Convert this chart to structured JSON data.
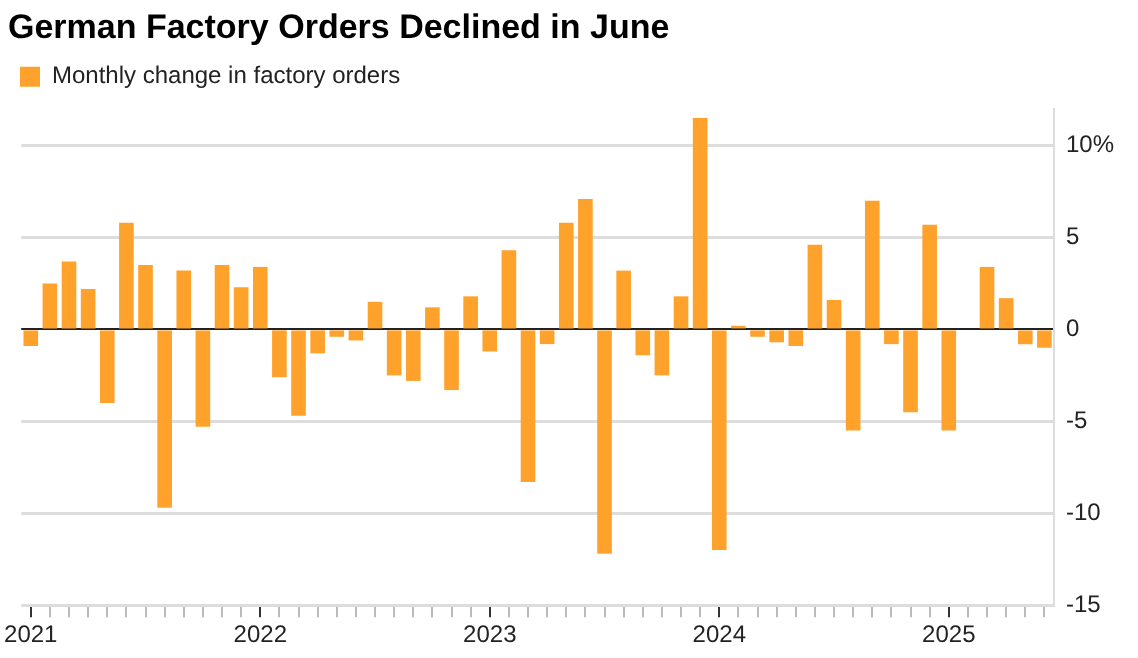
{
  "chart_data": {
    "type": "bar",
    "title": "German Factory Orders Declined in June",
    "categories": [
      "2021",
      null,
      null,
      null,
      null,
      null,
      null,
      null,
      null,
      null,
      null,
      null,
      "2022",
      null,
      null,
      null,
      null,
      null,
      null,
      null,
      null,
      null,
      null,
      null,
      "2023",
      null,
      null,
      null,
      null,
      null,
      null,
      null,
      null,
      null,
      null,
      null,
      "2024",
      null,
      null,
      null,
      null,
      null,
      null,
      null,
      null,
      null,
      null,
      null,
      "2025",
      null,
      null,
      null,
      null,
      null
    ],
    "series": [
      {
        "name": "Monthly change in factory orders",
        "color": "#ffa22b",
        "values": [
          -0.9,
          2.5,
          3.7,
          2.2,
          -4.0,
          5.8,
          3.5,
          -9.7,
          3.2,
          -5.3,
          3.5,
          2.3,
          3.4,
          -2.6,
          -4.7,
          -1.3,
          -0.4,
          -0.6,
          1.5,
          -2.5,
          -2.8,
          1.2,
          -3.3,
          1.8,
          -1.2,
          4.3,
          -8.3,
          -0.8,
          5.8,
          7.1,
          -12.2,
          3.2,
          -1.4,
          -2.5,
          1.8,
          11.5,
          -12.0,
          0.2,
          -0.4,
          -0.7,
          -0.9,
          4.6,
          1.6,
          -5.5,
          7.0,
          -0.8,
          -4.5,
          5.7,
          -5.5,
          0,
          3.4,
          1.7,
          -0.8,
          -1.0
        ]
      }
    ],
    "ylim": [
      -15,
      12
    ],
    "yticks": [
      -15,
      -10,
      -5,
      0,
      5,
      {
        "value": 10,
        "label": "10%"
      }
    ],
    "grid": "y",
    "legend": "top left"
  }
}
